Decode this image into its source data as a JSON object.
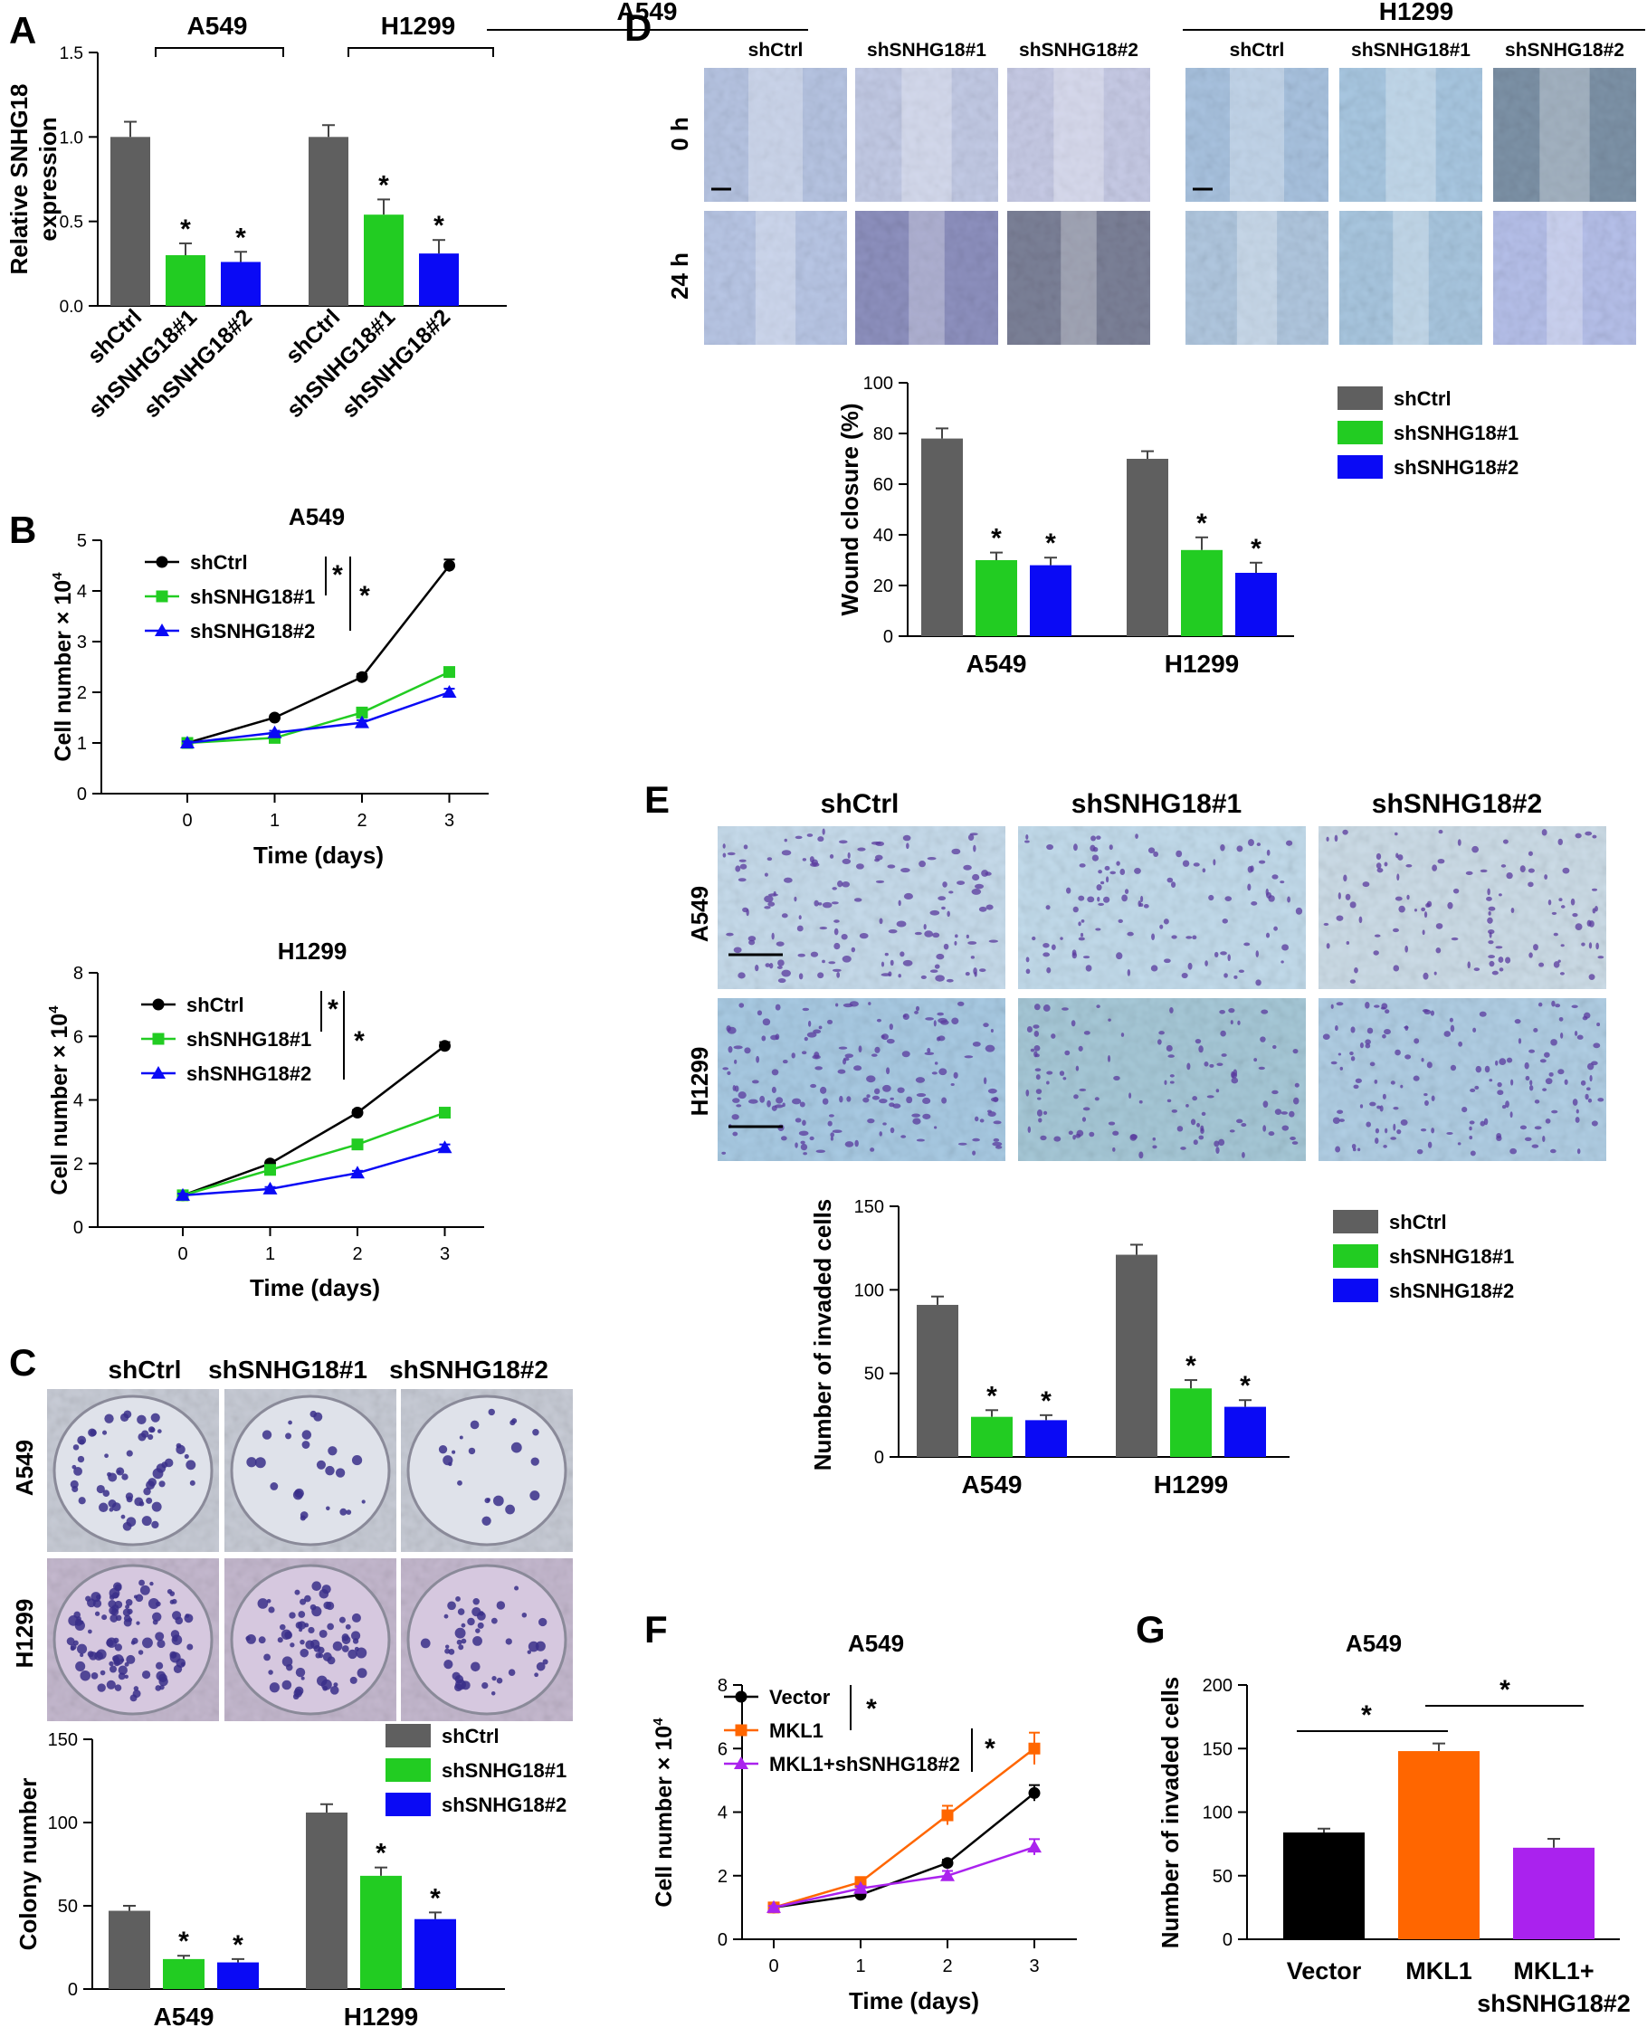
{
  "colors": {
    "ctrl": "#5f5f5f",
    "sh1": "#22cc22",
    "sh2": "#0a0af5",
    "black": "#000000",
    "mkl1": "#ff6600",
    "combo": "#aa22ee"
  },
  "panels": {
    "A": "A",
    "B": "B",
    "C": "C",
    "D": "D",
    "E": "E",
    "F": "F",
    "G": "G"
  },
  "star": "*",
  "chart_data": [
    {
      "id": "A",
      "type": "bar",
      "ylabel_lines": [
        "Relative SNHG18",
        "expression"
      ],
      "ylim": [
        0,
        1.5
      ],
      "yticks": [
        "0.0",
        "0.5",
        "1.0",
        "1.5"
      ],
      "groups": [
        {
          "name": "A549",
          "categories": [
            "shCtrl",
            "shSNHG18#1",
            "shSNHG18#2"
          ],
          "values": [
            1.0,
            0.3,
            0.26
          ],
          "errors": [
            0.09,
            0.07,
            0.06
          ],
          "stars": [
            false,
            true,
            true
          ]
        },
        {
          "name": "H1299",
          "categories": [
            "shCtrl",
            "shSNHG18#1",
            "shSNHG18#2"
          ],
          "values": [
            1.0,
            0.54,
            0.31
          ],
          "errors": [
            0.07,
            0.09,
            0.08
          ],
          "stars": [
            false,
            true,
            true
          ]
        }
      ]
    },
    {
      "id": "B1",
      "type": "line",
      "title": "A549",
      "xlabel": "Time (days)",
      "ylabel": "Cell number × 10",
      "ylabel_sup": "4",
      "x": [
        0,
        1,
        2,
        3
      ],
      "xticks": [
        "0",
        "1",
        "2",
        "3"
      ],
      "ylim": [
        0,
        5
      ],
      "yticks": [
        "0",
        "1",
        "2",
        "3",
        "4",
        "5"
      ],
      "series": [
        {
          "name": "shCtrl",
          "values": [
            1.0,
            1.5,
            2.3,
            4.5
          ],
          "errors": [
            0.03,
            0.04,
            0.06,
            0.12
          ],
          "marker": "circle",
          "color": "#000000"
        },
        {
          "name": "shSNHG18#1",
          "values": [
            1.0,
            1.1,
            1.6,
            2.4
          ],
          "errors": [
            0.03,
            0.04,
            0.05,
            0.07
          ],
          "marker": "square",
          "color": "#22cc22"
        },
        {
          "name": "shSNHG18#2",
          "values": [
            1.0,
            1.2,
            1.4,
            2.0
          ],
          "errors": [
            0.03,
            0.04,
            0.05,
            0.07
          ],
          "marker": "triangle",
          "color": "#0a0af5"
        }
      ]
    },
    {
      "id": "B2",
      "type": "line",
      "title": "H1299",
      "xlabel": "Time (days)",
      "ylabel": "Cell number × 10",
      "ylabel_sup": "4",
      "x": [
        0,
        1,
        2,
        3
      ],
      "xticks": [
        "0",
        "1",
        "2",
        "3"
      ],
      "ylim": [
        0,
        8
      ],
      "yticks": [
        "0",
        "2",
        "4",
        "6",
        "8"
      ],
      "series": [
        {
          "name": "shCtrl",
          "values": [
            1.0,
            2.0,
            3.6,
            5.7
          ],
          "errors": [
            0.05,
            0.06,
            0.08,
            0.12
          ],
          "marker": "circle",
          "color": "#000000"
        },
        {
          "name": "shSNHG18#1",
          "values": [
            1.0,
            1.8,
            2.6,
            3.6
          ],
          "errors": [
            0.05,
            0.06,
            0.07,
            0.08
          ],
          "marker": "square",
          "color": "#22cc22"
        },
        {
          "name": "shSNHG18#2",
          "values": [
            1.0,
            1.2,
            1.7,
            2.5
          ],
          "errors": [
            0.05,
            0.06,
            0.07,
            0.1
          ],
          "marker": "triangle",
          "color": "#0a0af5"
        }
      ]
    },
    {
      "id": "C",
      "type": "bar",
      "ylabel": "Colony number",
      "ylim": [
        0,
        150
      ],
      "yticks": [
        "0",
        "50",
        "100",
        "150"
      ],
      "legend": [
        "shCtrl",
        "shSNHG18#1",
        "shSNHG18#2"
      ],
      "groups": [
        {
          "name": "A549",
          "values": [
            47,
            18,
            16
          ],
          "errors": [
            3,
            2,
            2
          ],
          "stars": [
            false,
            true,
            true
          ]
        },
        {
          "name": "H1299",
          "values": [
            106,
            68,
            42
          ],
          "errors": [
            5,
            5,
            4
          ],
          "stars": [
            false,
            true,
            true
          ]
        }
      ]
    },
    {
      "id": "D",
      "type": "bar",
      "ylabel": "Wound closure (%)",
      "ylim": [
        0,
        100
      ],
      "yticks": [
        "0",
        "20",
        "40",
        "60",
        "80",
        "100"
      ],
      "legend": [
        "shCtrl",
        "shSNHG18#1",
        "shSNHG18#2"
      ],
      "groups": [
        {
          "name": "A549",
          "values": [
            78,
            30,
            28
          ],
          "errors": [
            4,
            3,
            3
          ],
          "stars": [
            false,
            true,
            true
          ]
        },
        {
          "name": "H1299",
          "values": [
            70,
            34,
            25
          ],
          "errors": [
            3,
            5,
            4
          ],
          "stars": [
            false,
            true,
            true
          ]
        }
      ]
    },
    {
      "id": "E",
      "type": "bar",
      "ylabel": "Number of invaded cells",
      "ylim": [
        0,
        150
      ],
      "yticks": [
        "0",
        "50",
        "100",
        "150"
      ],
      "legend": [
        "shCtrl",
        "shSNHG18#1",
        "shSNHG18#2"
      ],
      "groups": [
        {
          "name": "A549",
          "values": [
            91,
            24,
            22
          ],
          "errors": [
            5,
            4,
            3
          ],
          "stars": [
            false,
            true,
            true
          ]
        },
        {
          "name": "H1299",
          "values": [
            121,
            41,
            30
          ],
          "errors": [
            6,
            5,
            4
          ],
          "stars": [
            false,
            true,
            true
          ]
        }
      ]
    },
    {
      "id": "F",
      "type": "line",
      "title": "A549",
      "xlabel": "Time (days)",
      "ylabel": "Cell number × 10",
      "ylabel_sup": "4",
      "x": [
        0,
        1,
        2,
        3
      ],
      "xticks": [
        "0",
        "1",
        "2",
        "3"
      ],
      "ylim": [
        0,
        8
      ],
      "yticks": [
        "0",
        "2",
        "4",
        "6",
        "8"
      ],
      "series": [
        {
          "name": "Vector",
          "values": [
            1.0,
            1.4,
            2.4,
            4.6
          ],
          "errors": [
            0.05,
            0.06,
            0.1,
            0.25
          ],
          "marker": "circle",
          "color": "#000000"
        },
        {
          "name": "MKL1",
          "values": [
            1.0,
            1.8,
            3.9,
            6.0
          ],
          "errors": [
            0.05,
            0.08,
            0.3,
            0.5
          ],
          "marker": "square",
          "color": "#ff6600"
        },
        {
          "name": "MKL1+shSNHG18#2",
          "values": [
            1.0,
            1.6,
            2.0,
            2.9
          ],
          "errors": [
            0.05,
            0.07,
            0.15,
            0.25
          ],
          "marker": "triangle",
          "color": "#aa22ee"
        }
      ]
    },
    {
      "id": "G",
      "type": "bar",
      "title": "A549",
      "ylabel": "Number of invaded cells",
      "ylim": [
        0,
        200
      ],
      "yticks": [
        "0",
        "50",
        "100",
        "150",
        "200"
      ],
      "categories": [
        "Vector",
        "MKL1",
        "MKL1+ shSNHG18#2"
      ],
      "category_lines": [
        [
          "Vector"
        ],
        [
          "MKL1"
        ],
        [
          "MKL1+",
          "shSNHG18#2"
        ]
      ],
      "values": [
        84,
        148,
        72
      ],
      "errors": [
        3,
        6,
        7
      ]
    }
  ],
  "images": {
    "C": {
      "cols": [
        "shCtrl",
        "shSNHG18#1",
        "shSNHG18#2"
      ],
      "rows": [
        "A549",
        "H1299"
      ]
    },
    "D": {
      "groups": [
        "A549",
        "H1299"
      ],
      "cols": [
        "shCtrl",
        "shSNHG18#1",
        "shSNHG18#2"
      ],
      "rows": [
        "0 h",
        "24 h"
      ]
    },
    "E": {
      "cols": [
        "shCtrl",
        "shSNHG18#1",
        "shSNHG18#2"
      ],
      "rows": [
        "A549",
        "H1299"
      ]
    }
  }
}
